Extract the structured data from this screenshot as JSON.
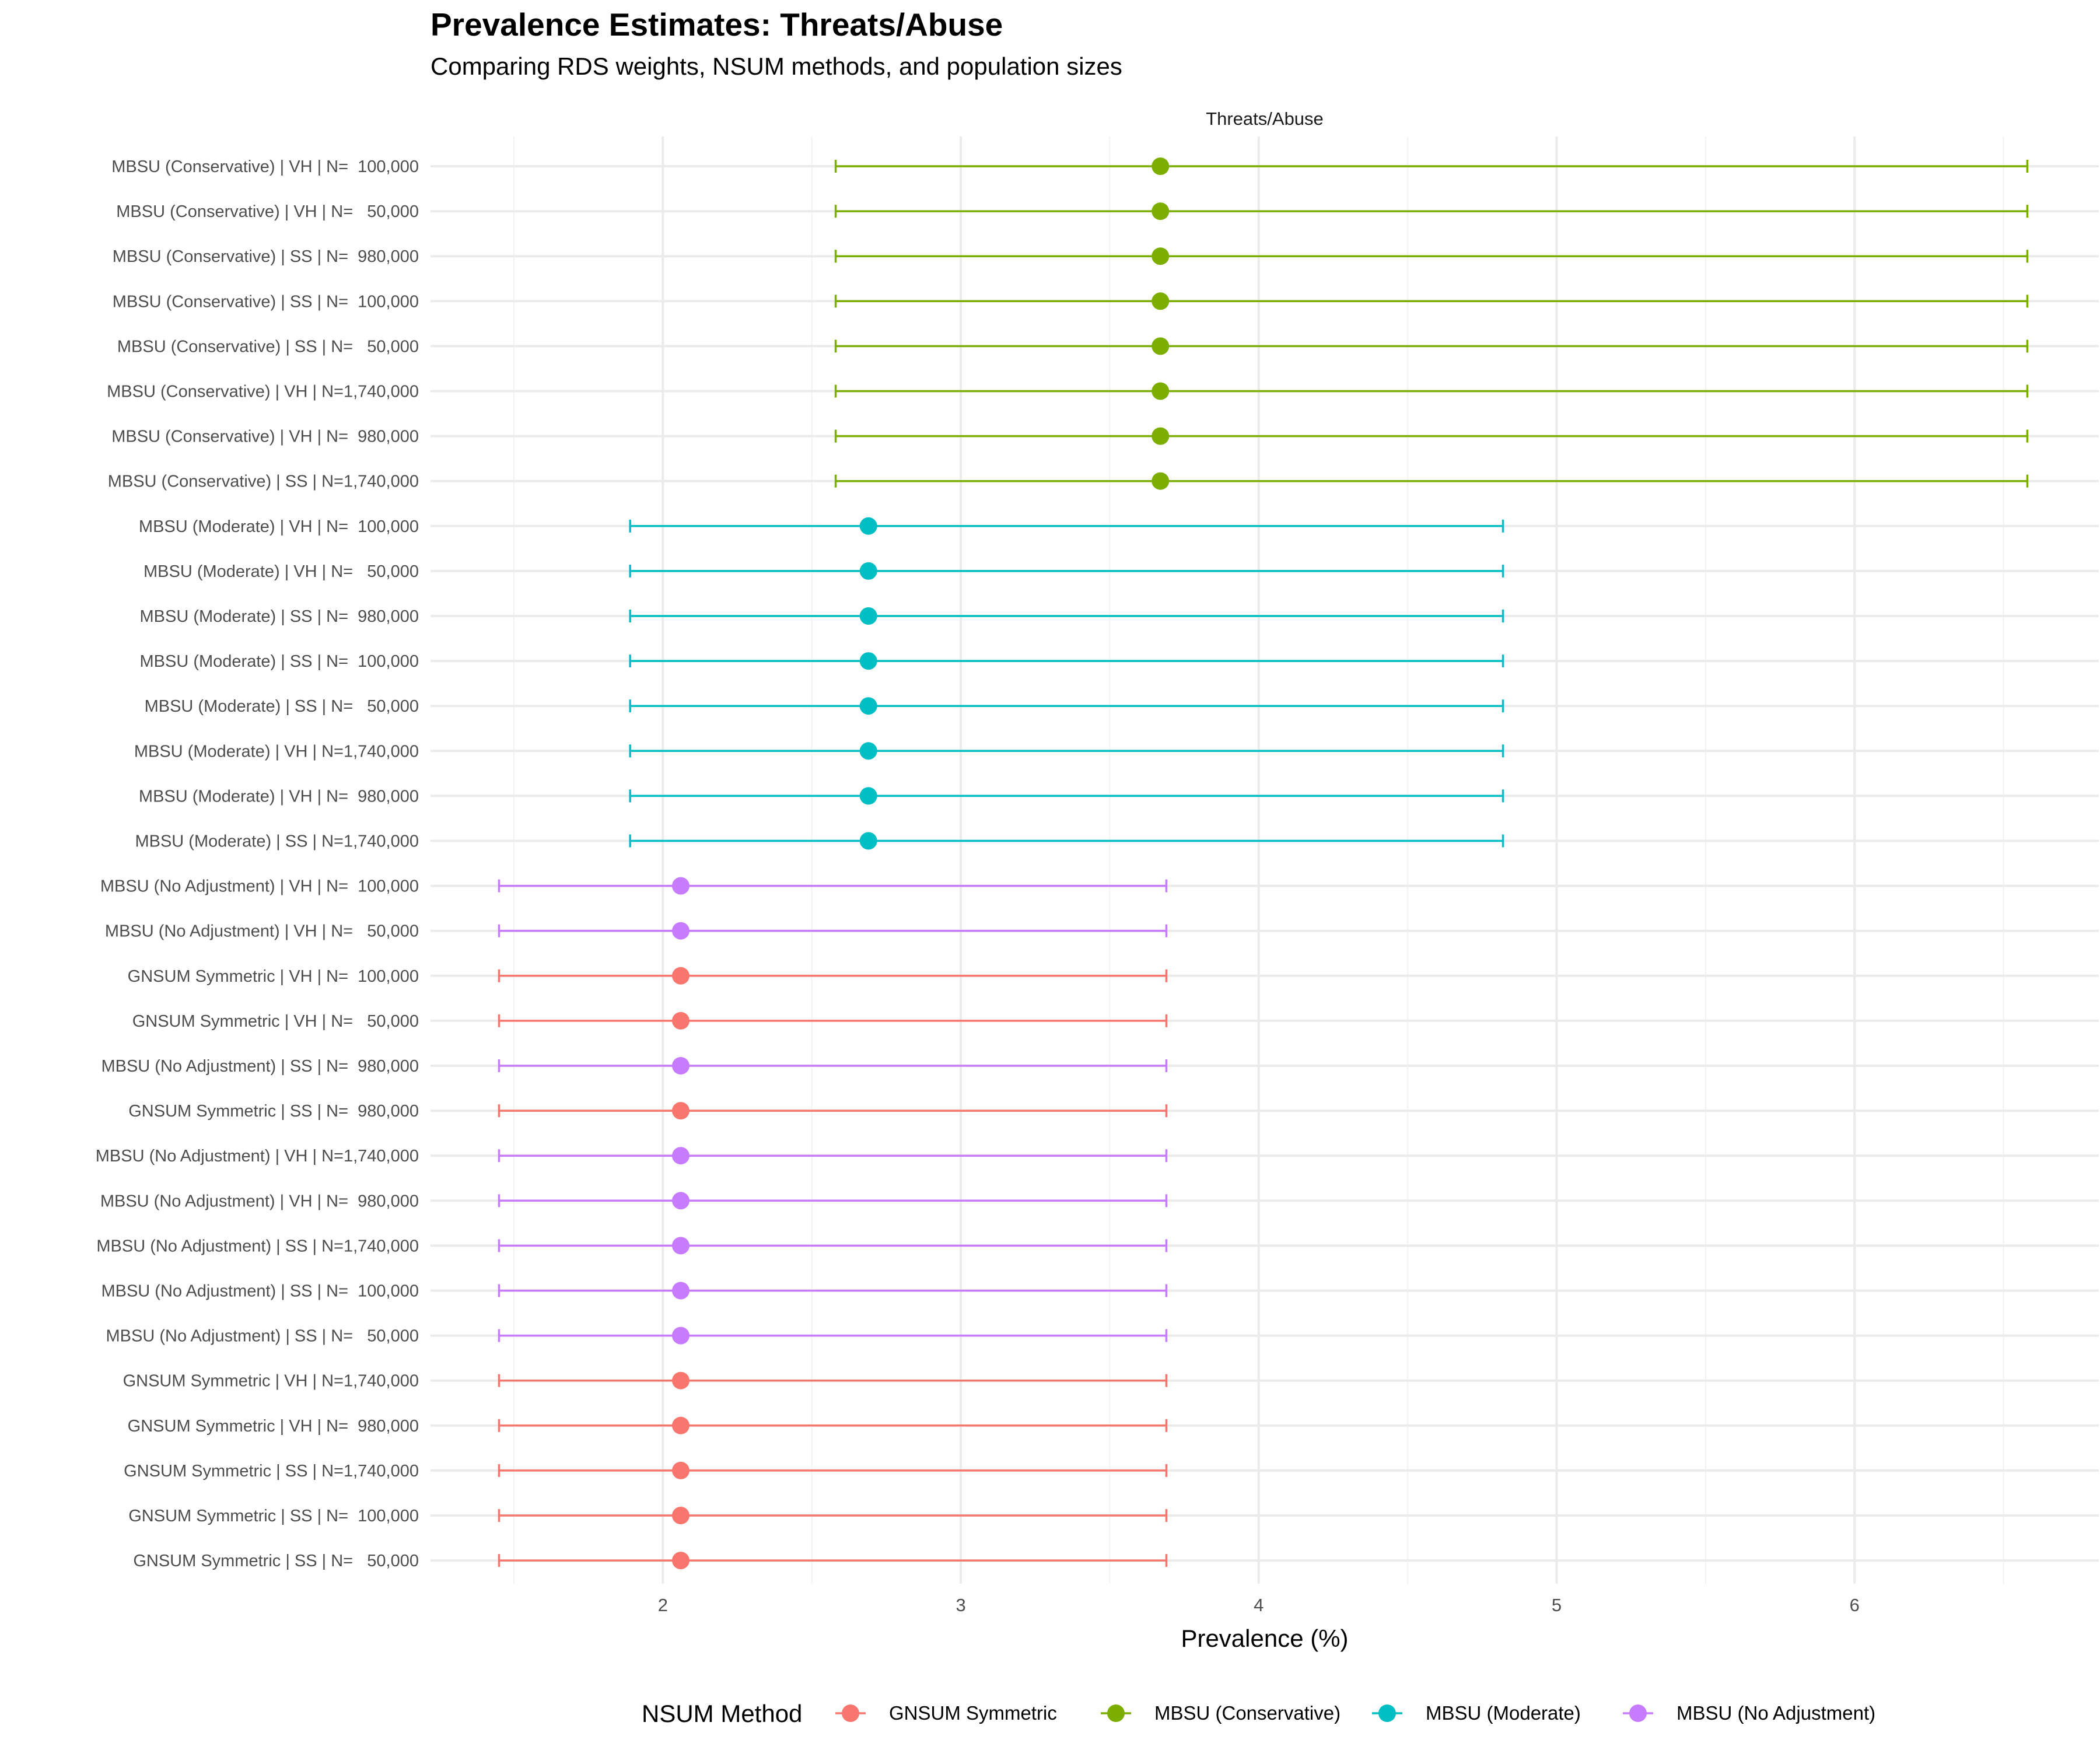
{
  "title": "Prevalence Estimates: Threats/Abuse",
  "subtitle": "Comparing RDS weights, NSUM methods, and population sizes",
  "chart_data": {
    "type": "scatter",
    "subtype": "point-range (error bars)",
    "facet_label": "Threats/Abuse",
    "xlabel": "Prevalence (%)",
    "ylabel": "",
    "xlim": [
      1.22,
      6.82
    ],
    "xticks": [
      2,
      3,
      4,
      5,
      6
    ],
    "grid": true,
    "legend": {
      "title": "NSUM Method",
      "position": "bottom",
      "entries": [
        "GNSUM Symmetric",
        "MBSU (Conservative)",
        "MBSU (Moderate)",
        "MBSU (No Adjustment)"
      ]
    },
    "colors": {
      "GNSUM Symmetric": "#F8766D",
      "MBSU (Conservative)": "#7CAE00",
      "MBSU (Moderate)": "#00BFC4",
      "MBSU (No Adjustment)": "#C77CFF"
    },
    "rows": [
      {
        "label": "MBSU (Conservative) | VH | N=  100,000",
        "method": "MBSU (Conservative)",
        "estimate": 3.67,
        "lower": 2.58,
        "upper": 6.58
      },
      {
        "label": "MBSU (Conservative) | VH | N=   50,000",
        "method": "MBSU (Conservative)",
        "estimate": 3.67,
        "lower": 2.58,
        "upper": 6.58
      },
      {
        "label": "MBSU (Conservative) | SS | N=  980,000",
        "method": "MBSU (Conservative)",
        "estimate": 3.67,
        "lower": 2.58,
        "upper": 6.58
      },
      {
        "label": "MBSU (Conservative) | SS | N=  100,000",
        "method": "MBSU (Conservative)",
        "estimate": 3.67,
        "lower": 2.58,
        "upper": 6.58
      },
      {
        "label": "MBSU (Conservative) | SS | N=   50,000",
        "method": "MBSU (Conservative)",
        "estimate": 3.67,
        "lower": 2.58,
        "upper": 6.58
      },
      {
        "label": "MBSU (Conservative) | VH | N=1,740,000",
        "method": "MBSU (Conservative)",
        "estimate": 3.67,
        "lower": 2.58,
        "upper": 6.58
      },
      {
        "label": "MBSU (Conservative) | VH | N=  980,000",
        "method": "MBSU (Conservative)",
        "estimate": 3.67,
        "lower": 2.58,
        "upper": 6.58
      },
      {
        "label": "MBSU (Conservative) | SS | N=1,740,000",
        "method": "MBSU (Conservative)",
        "estimate": 3.67,
        "lower": 2.58,
        "upper": 6.58
      },
      {
        "label": "MBSU (Moderate) | VH | N=  100,000",
        "method": "MBSU (Moderate)",
        "estimate": 2.69,
        "lower": 1.89,
        "upper": 4.82
      },
      {
        "label": "MBSU (Moderate) | VH | N=   50,000",
        "method": "MBSU (Moderate)",
        "estimate": 2.69,
        "lower": 1.89,
        "upper": 4.82
      },
      {
        "label": "MBSU (Moderate) | SS | N=  980,000",
        "method": "MBSU (Moderate)",
        "estimate": 2.69,
        "lower": 1.89,
        "upper": 4.82
      },
      {
        "label": "MBSU (Moderate) | SS | N=  100,000",
        "method": "MBSU (Moderate)",
        "estimate": 2.69,
        "lower": 1.89,
        "upper": 4.82
      },
      {
        "label": "MBSU (Moderate) | SS | N=   50,000",
        "method": "MBSU (Moderate)",
        "estimate": 2.69,
        "lower": 1.89,
        "upper": 4.82
      },
      {
        "label": "MBSU (Moderate) | VH | N=1,740,000",
        "method": "MBSU (Moderate)",
        "estimate": 2.69,
        "lower": 1.89,
        "upper": 4.82
      },
      {
        "label": "MBSU (Moderate) | VH | N=  980,000",
        "method": "MBSU (Moderate)",
        "estimate": 2.69,
        "lower": 1.89,
        "upper": 4.82
      },
      {
        "label": "MBSU (Moderate) | SS | N=1,740,000",
        "method": "MBSU (Moderate)",
        "estimate": 2.69,
        "lower": 1.89,
        "upper": 4.82
      },
      {
        "label": "MBSU (No Adjustment) | VH | N=  100,000",
        "method": "MBSU (No Adjustment)",
        "estimate": 2.06,
        "lower": 1.45,
        "upper": 3.69
      },
      {
        "label": "MBSU (No Adjustment) | VH | N=   50,000",
        "method": "MBSU (No Adjustment)",
        "estimate": 2.06,
        "lower": 1.45,
        "upper": 3.69
      },
      {
        "label": "GNSUM Symmetric | VH | N=  100,000",
        "method": "GNSUM Symmetric",
        "estimate": 2.06,
        "lower": 1.45,
        "upper": 3.69
      },
      {
        "label": "GNSUM Symmetric | VH | N=   50,000",
        "method": "GNSUM Symmetric",
        "estimate": 2.06,
        "lower": 1.45,
        "upper": 3.69
      },
      {
        "label": "MBSU (No Adjustment) | SS | N=  980,000",
        "method": "MBSU (No Adjustment)",
        "estimate": 2.06,
        "lower": 1.45,
        "upper": 3.69
      },
      {
        "label": "GNSUM Symmetric | SS | N=  980,000",
        "method": "GNSUM Symmetric",
        "estimate": 2.06,
        "lower": 1.45,
        "upper": 3.69
      },
      {
        "label": "MBSU (No Adjustment) | VH | N=1,740,000",
        "method": "MBSU (No Adjustment)",
        "estimate": 2.06,
        "lower": 1.45,
        "upper": 3.69
      },
      {
        "label": "MBSU (No Adjustment) | VH | N=  980,000",
        "method": "MBSU (No Adjustment)",
        "estimate": 2.06,
        "lower": 1.45,
        "upper": 3.69
      },
      {
        "label": "MBSU (No Adjustment) | SS | N=1,740,000",
        "method": "MBSU (No Adjustment)",
        "estimate": 2.06,
        "lower": 1.45,
        "upper": 3.69
      },
      {
        "label": "MBSU (No Adjustment) | SS | N=  100,000",
        "method": "MBSU (No Adjustment)",
        "estimate": 2.06,
        "lower": 1.45,
        "upper": 3.69
      },
      {
        "label": "MBSU (No Adjustment) | SS | N=   50,000",
        "method": "MBSU (No Adjustment)",
        "estimate": 2.06,
        "lower": 1.45,
        "upper": 3.69
      },
      {
        "label": "GNSUM Symmetric | VH | N=1,740,000",
        "method": "GNSUM Symmetric",
        "estimate": 2.06,
        "lower": 1.45,
        "upper": 3.69
      },
      {
        "label": "GNSUM Symmetric | VH | N=  980,000",
        "method": "GNSUM Symmetric",
        "estimate": 2.06,
        "lower": 1.45,
        "upper": 3.69
      },
      {
        "label": "GNSUM Symmetric | SS | N=1,740,000",
        "method": "GNSUM Symmetric",
        "estimate": 2.06,
        "lower": 1.45,
        "upper": 3.69
      },
      {
        "label": "GNSUM Symmetric | SS | N=  100,000",
        "method": "GNSUM Symmetric",
        "estimate": 2.06,
        "lower": 1.45,
        "upper": 3.69
      },
      {
        "label": "GNSUM Symmetric | SS | N=   50,000",
        "method": "GNSUM Symmetric",
        "estimate": 2.06,
        "lower": 1.45,
        "upper": 3.69
      }
    ]
  }
}
